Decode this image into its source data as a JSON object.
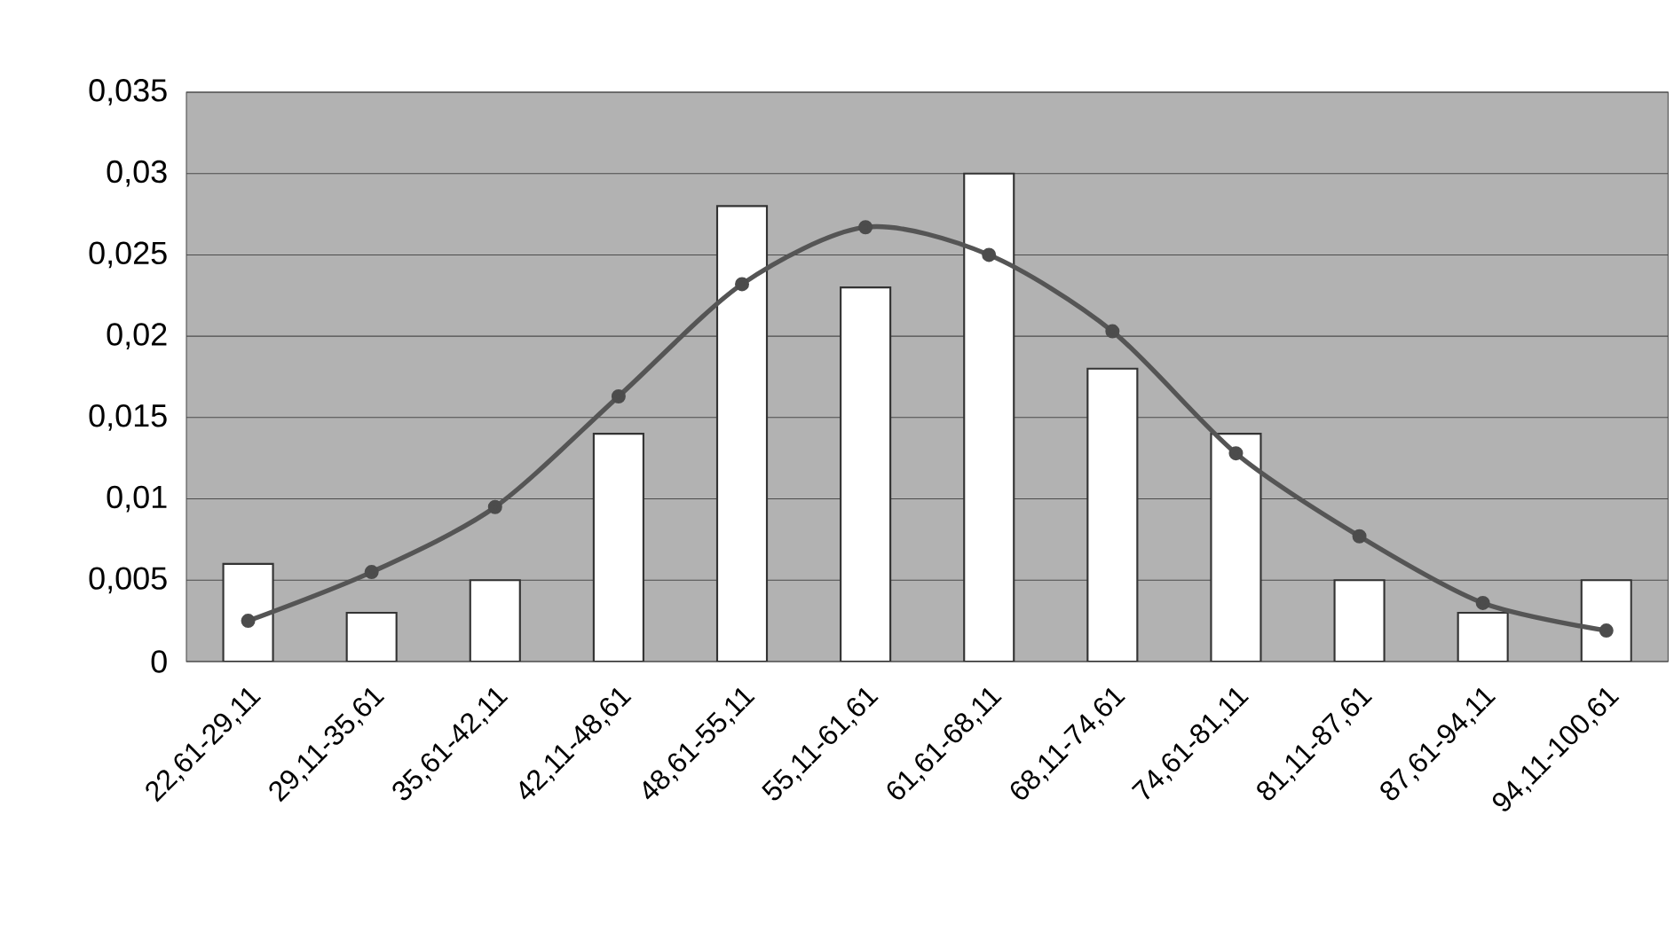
{
  "chart_data": {
    "type": "bar",
    "categories": [
      "22,61-29,11",
      "29,11-35,61",
      "35,61-42,11",
      "42,11-48,61",
      "48,61-55,11",
      "55,11-61,61",
      "61,61-68,11",
      "68,11-74,61",
      "74,61-81,11",
      "81,11-87,61",
      "87,61-94,11",
      "94,11-100,61"
    ],
    "series": [
      {
        "color": "#ffffff",
        "values": [
          0.006,
          0.003,
          0.005,
          0.014,
          0.028,
          0.023,
          0.03,
          0.018,
          0.014,
          0.005,
          0.003,
          0.005
        ]
      },
      {
        "type": "line",
        "color": "#555555",
        "marker": "circle",
        "values": [
          0.0025,
          0.0055,
          0.0095,
          0.0163,
          0.0232,
          0.0267,
          0.025,
          0.0203,
          0.0128,
          0.0077,
          0.0036,
          0.0019
        ]
      }
    ],
    "ylim": [
      0,
      0.035
    ],
    "yticks": [
      {
        "value": 0,
        "label": "0"
      },
      {
        "value": 0.005,
        "label": "0,005"
      },
      {
        "value": 0.01,
        "label": "0,01"
      },
      {
        "value": 0.015,
        "label": "0,015"
      },
      {
        "value": 0.02,
        "label": "0,02"
      },
      {
        "value": 0.025,
        "label": "0,025"
      },
      {
        "value": 0.03,
        "label": "0,03"
      },
      {
        "value": 0.035,
        "label": "0,035"
      }
    ],
    "grid": "y"
  }
}
